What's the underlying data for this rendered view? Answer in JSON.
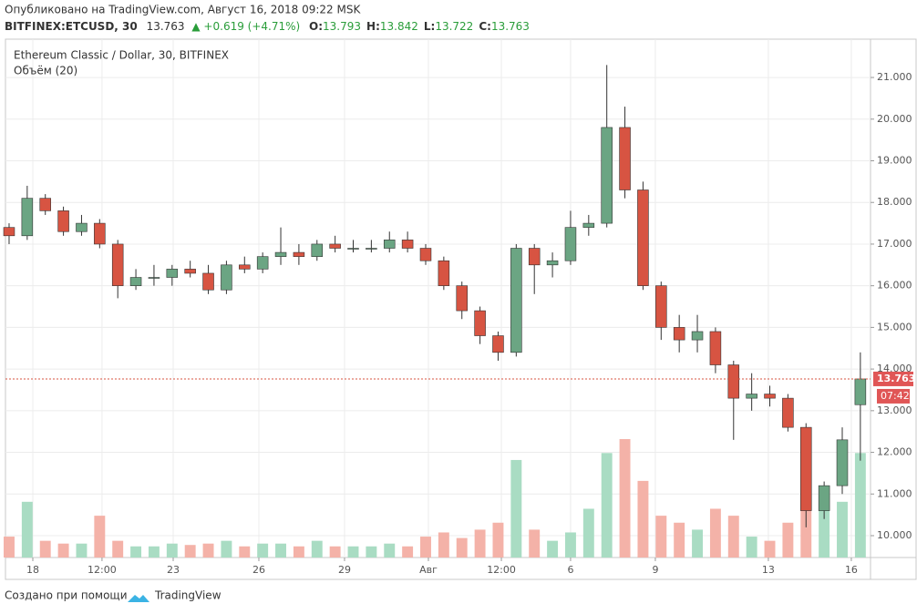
{
  "header": {
    "published": "Опубликовано на TradingView.com, Август 16, 2018 09:22 MSK",
    "symbol": "BITFINEX:ETCUSD, 30",
    "price": "13.763",
    "change": "▲ +0.619 (+4.71%)",
    "ohlc": [
      {
        "label": "O:",
        "value": "13.793"
      },
      {
        "label": "H:",
        "value": "13.842"
      },
      {
        "label": "L:",
        "value": "13.722"
      },
      {
        "label": "C:",
        "value": "13.763"
      }
    ]
  },
  "chart_data": {
    "type": "candlestick",
    "title": "Ethereum Classic / Dollar, 30, BITFINEX",
    "volume_title": "Объём (20)",
    "up_color": "#6ba583",
    "down_color": "#d75442",
    "volume_up_color": "#a9dcc3",
    "volume_down_color": "#f4b2a8",
    "grid": true,
    "x": [
      0,
      1,
      2,
      3,
      4,
      5,
      6,
      7,
      8,
      9,
      10,
      11,
      12,
      13,
      14,
      15,
      16,
      17,
      18,
      19,
      20,
      21,
      22,
      23,
      24,
      25,
      26,
      27,
      28,
      29,
      30,
      31,
      32,
      33,
      34,
      35,
      36,
      37,
      38,
      39,
      40,
      41,
      42,
      43,
      44,
      45,
      46,
      47
    ],
    "open": [
      17.4,
      17.2,
      18.1,
      17.8,
      17.3,
      17.5,
      17.0,
      16.0,
      16.2,
      16.2,
      16.4,
      16.3,
      15.9,
      16.5,
      16.4,
      16.7,
      16.8,
      16.7,
      17.0,
      16.9,
      16.9,
      16.9,
      17.1,
      16.9,
      16.6,
      16.0,
      15.4,
      14.8,
      14.4,
      16.9,
      16.5,
      16.6,
      17.4,
      17.5,
      19.8,
      18.3,
      16.0,
      15.0,
      14.7,
      14.9,
      14.1,
      13.3,
      13.4,
      13.3,
      12.6,
      10.6,
      11.2,
      13.144
    ],
    "high": [
      17.5,
      18.4,
      18.2,
      17.9,
      17.7,
      17.6,
      17.1,
      16.4,
      16.5,
      16.5,
      16.6,
      16.5,
      16.6,
      16.7,
      16.8,
      17.4,
      17.0,
      17.1,
      17.2,
      17.1,
      17.1,
      17.3,
      17.3,
      17.0,
      16.7,
      16.1,
      15.5,
      14.9,
      17.0,
      17.0,
      16.8,
      17.8,
      17.7,
      21.3,
      20.3,
      18.5,
      16.1,
      15.3,
      15.3,
      15.0,
      14.2,
      13.9,
      13.6,
      13.4,
      12.7,
      11.3,
      12.6,
      14.4
    ],
    "low": [
      17.0,
      17.1,
      17.7,
      17.2,
      17.2,
      16.9,
      15.7,
      15.9,
      16.0,
      16.0,
      16.2,
      15.8,
      15.8,
      16.3,
      16.3,
      16.5,
      16.5,
      16.6,
      16.8,
      16.8,
      16.8,
      16.8,
      16.8,
      16.5,
      15.9,
      15.2,
      14.6,
      14.2,
      14.3,
      15.8,
      16.2,
      16.5,
      17.2,
      17.4,
      18.1,
      15.9,
      14.7,
      14.4,
      14.4,
      13.9,
      12.3,
      13.0,
      13.1,
      12.5,
      10.2,
      10.4,
      11.0,
      11.8
    ],
    "close": [
      17.2,
      18.1,
      17.8,
      17.3,
      17.5,
      17.0,
      16.0,
      16.2,
      16.2,
      16.4,
      16.3,
      15.9,
      16.5,
      16.4,
      16.7,
      16.8,
      16.7,
      17.0,
      16.9,
      16.9,
      16.9,
      17.1,
      16.9,
      16.6,
      16.0,
      15.4,
      14.8,
      14.4,
      16.9,
      16.5,
      16.6,
      17.4,
      17.5,
      19.8,
      18.3,
      16.0,
      15.0,
      14.7,
      14.9,
      14.1,
      13.3,
      13.4,
      13.3,
      12.6,
      10.6,
      11.2,
      12.3,
      13.763
    ],
    "volume": [
      15,
      40,
      12,
      10,
      10,
      30,
      12,
      8,
      8,
      10,
      9,
      10,
      12,
      8,
      10,
      10,
      8,
      12,
      8,
      8,
      8,
      10,
      8,
      15,
      18,
      14,
      20,
      25,
      70,
      20,
      12,
      18,
      35,
      75,
      85,
      55,
      30,
      25,
      20,
      35,
      30,
      15,
      12,
      25,
      60,
      45,
      40,
      75
    ],
    "last_price_label": "13.763",
    "countdown": "07:42",
    "xlim": [
      -0.2,
      47.56
    ],
    "ylim": [
      9.475,
      21.92
    ],
    "xticks": [
      {
        "value": 1.31,
        "label": "18"
      },
      {
        "value": 5.13,
        "label": "12:00"
      },
      {
        "value": 9.06,
        "label": "23"
      },
      {
        "value": 13.79,
        "label": "26"
      },
      {
        "value": 18.52,
        "label": "29"
      },
      {
        "value": 23.15,
        "label": "Авг"
      },
      {
        "value": 27.18,
        "label": "12:00"
      },
      {
        "value": 31.0,
        "label": "6"
      },
      {
        "value": 35.68,
        "label": "9"
      },
      {
        "value": 41.92,
        "label": "13"
      },
      {
        "value": 46.5,
        "label": "16"
      }
    ],
    "yticks": [
      {
        "value": 10,
        "label": "10.000"
      },
      {
        "value": 11,
        "label": "11.000"
      },
      {
        "value": 12,
        "label": "12.000"
      },
      {
        "value": 13,
        "label": "13.000"
      },
      {
        "value": 14,
        "label": "14.000"
      },
      {
        "value": 15,
        "label": "15.000"
      },
      {
        "value": 16,
        "label": "16.000"
      },
      {
        "value": 17,
        "label": "17.000"
      },
      {
        "value": 18,
        "label": "18.000"
      },
      {
        "value": 19,
        "label": "19.000"
      },
      {
        "value": 20,
        "label": "20.000"
      },
      {
        "value": 21,
        "label": "21.000"
      }
    ]
  },
  "footer": {
    "made_with": "Создано при помощи",
    "brand": "TradingView"
  }
}
